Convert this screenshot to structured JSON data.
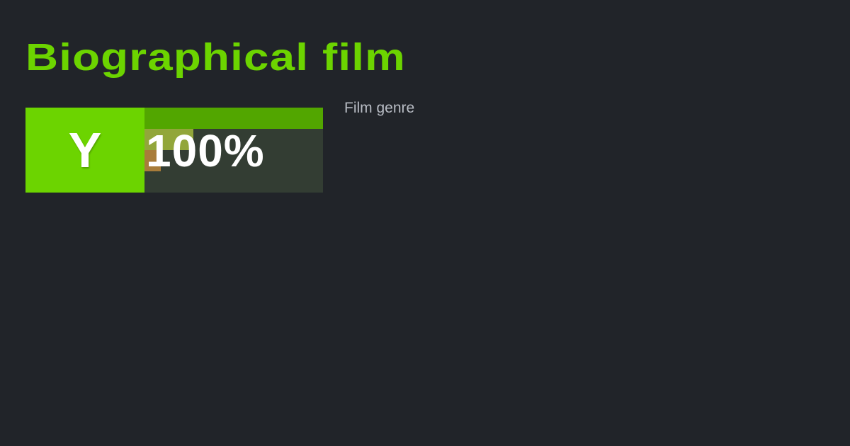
{
  "title": "Biographical film",
  "subtitle": "Film genre",
  "badge": {
    "letter": "Y",
    "percent_label": "100%",
    "bars": [
      {
        "fraction": 1.0,
        "color": "#52a600"
      },
      {
        "fraction": 0.274,
        "color": "#92a63a"
      },
      {
        "fraction": 0.092,
        "color": "#a87c3a"
      }
    ]
  },
  "colors": {
    "accent": "#6cd400",
    "background": "#212429"
  }
}
